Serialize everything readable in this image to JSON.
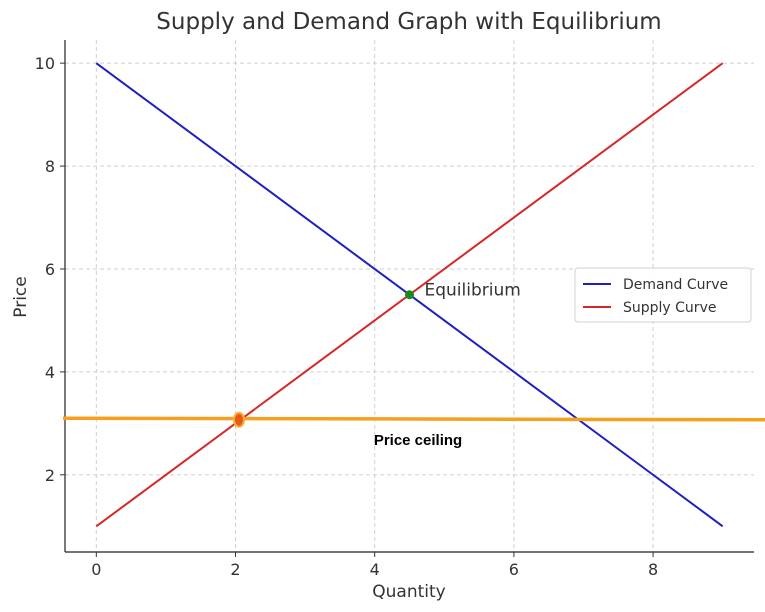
{
  "chart_data": {
    "type": "line",
    "title": "Supply and Demand Graph with Equilibrium",
    "xlabel": "Quantity",
    "ylabel": "Price",
    "xlim": [
      -0.45,
      9.45
    ],
    "ylim": [
      0.5,
      10.45
    ],
    "xticks": [
      "0",
      "2",
      "4",
      "6",
      "8"
    ],
    "yticks": [
      "2",
      "4",
      "6",
      "8",
      "10"
    ],
    "grid": true,
    "legend_position": "center-right",
    "series": [
      {
        "name": "Demand Curve",
        "color": "#1f1fbf",
        "x": [
          0,
          9
        ],
        "y": [
          10,
          1
        ]
      },
      {
        "name": "Supply Curve",
        "color": "#d62728",
        "x": [
          0,
          9
        ],
        "y": [
          1,
          10
        ]
      }
    ],
    "equilibrium": {
      "x": 4.5,
      "y": 5.5,
      "label": "Equilibrium",
      "color": "#1a8a1a"
    },
    "price_ceiling": {
      "y_start": 3.1,
      "y_end": 3.07,
      "label": "Price ceiling",
      "color": "#f5a020",
      "marker": {
        "x": 2.05,
        "y": 3.07,
        "color": "#e8591a"
      }
    }
  }
}
